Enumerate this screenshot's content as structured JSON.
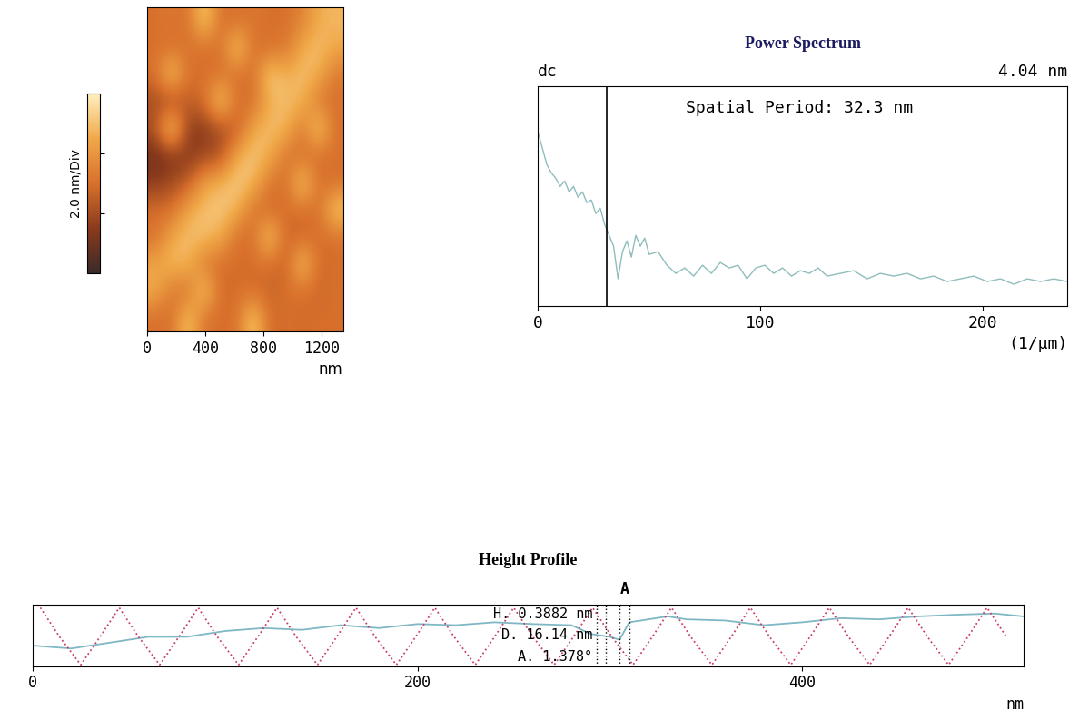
{
  "chart_data": [
    {
      "type": "heatmap",
      "cells": [
        [
          3,
          3.2,
          3,
          5.5,
          3,
          3,
          3.2,
          3,
          3,
          3.5,
          4.6,
          4.8
        ],
        [
          3,
          3,
          3.1,
          3,
          3,
          5.5,
          3,
          3,
          3.2,
          4.6,
          5,
          4.5
        ],
        [
          3,
          5.5,
          3,
          3,
          3.1,
          3,
          3,
          5.5,
          4.6,
          5,
          4.6,
          3.2
        ],
        [
          2,
          1.8,
          2.5,
          3,
          5.6,
          3,
          3,
          4.6,
          5,
          4.7,
          3.2,
          3
        ],
        [
          2.2,
          6,
          1.6,
          1.5,
          2,
          2.5,
          4.5,
          5,
          4.8,
          3.2,
          5.5,
          3
        ],
        [
          1,
          1.2,
          1.5,
          1.8,
          2.2,
          4.6,
          5.2,
          4.6,
          3.1,
          3,
          3,
          3
        ],
        [
          1.5,
          2,
          2.5,
          4.4,
          4.8,
          5.3,
          4.8,
          3.2,
          3,
          5.5,
          3,
          3
        ],
        [
          3,
          3,
          4.5,
          5,
          5.2,
          4.7,
          3.1,
          2.8,
          3,
          3,
          3,
          5.4
        ],
        [
          3,
          4.5,
          5,
          5,
          4.6,
          3,
          3,
          5.5,
          2.7,
          2.8,
          3,
          3
        ],
        [
          4.4,
          4.9,
          4.8,
          3.2,
          3,
          2.9,
          3,
          3,
          2.6,
          5.4,
          2.8,
          3
        ],
        [
          4.6,
          3.2,
          3,
          5.5,
          2.8,
          3,
          2.9,
          2.7,
          3,
          3,
          2.8,
          3
        ],
        [
          3,
          3,
          5.3,
          3,
          3,
          3,
          5.5,
          2.8,
          3,
          2.9,
          3,
          3
        ]
      ],
      "xlim": [
        0,
        1350
      ],
      "ylim": [
        0,
        1350
      ],
      "xticks": [
        0,
        400,
        800,
        1200
      ],
      "xlabel": "nm",
      "tick_labels": "x",
      "colorbar": {
        "label": "2.0 nm/Div",
        "range": [
          0,
          6
        ],
        "ticks": [
          2,
          4
        ],
        "tick_labels": false
      }
    },
    {
      "type": "line",
      "title": "Power Spectrum",
      "left_label": "dc",
      "right_label": "4.04 nm",
      "annotation": "Spatial Period: 32.3 nm",
      "xlabel": "(1/µm)",
      "x": [
        0,
        2,
        4,
        6,
        8,
        10,
        12,
        14,
        16,
        18,
        20,
        22,
        24,
        26,
        28,
        30,
        32,
        34,
        36,
        38,
        40,
        42,
        44,
        46,
        48,
        50,
        54,
        58,
        62,
        66,
        70,
        74,
        78,
        82,
        86,
        90,
        94,
        98,
        102,
        106,
        110,
        114,
        118,
        122,
        126,
        130,
        136,
        142,
        148,
        154,
        160,
        166,
        172,
        178,
        184,
        190,
        196,
        202,
        208,
        214,
        220,
        226,
        232,
        238
      ],
      "values": [
        3.2,
        2.9,
        2.6,
        2.45,
        2.35,
        2.2,
        2.3,
        2.1,
        2.2,
        2.0,
        2.1,
        1.9,
        1.95,
        1.7,
        1.8,
        1.5,
        1.3,
        1.1,
        0.5,
        1.0,
        1.2,
        0.9,
        1.3,
        1.1,
        1.25,
        0.95,
        1.0,
        0.75,
        0.6,
        0.7,
        0.55,
        0.75,
        0.6,
        0.8,
        0.7,
        0.75,
        0.5,
        0.7,
        0.75,
        0.6,
        0.7,
        0.55,
        0.65,
        0.6,
        0.7,
        0.55,
        0.6,
        0.65,
        0.5,
        0.6,
        0.55,
        0.6,
        0.5,
        0.55,
        0.45,
        0.5,
        0.55,
        0.45,
        0.5,
        0.4,
        0.5,
        0.45,
        0.5,
        0.45
      ],
      "color": "#8fbcbc",
      "cursor": 31,
      "xlim": [
        0,
        238
      ],
      "ylim": [
        0,
        4.04
      ],
      "xticks": [
        0,
        100,
        200
      ],
      "tick_labels": "x"
    },
    {
      "type": "line",
      "title": "Height Profile",
      "xlabel": "nm",
      "annotations": [
        "H. 0.3882 nm",
        "D. 16.14 nm",
        "A. 1.378°"
      ],
      "cursor_label": "A",
      "cursors": [
        293,
        298,
        305,
        310
      ],
      "series": [
        {
          "color": "#7fb8c4",
          "line_style": "solid",
          "x": [
            0,
            20,
            40,
            60,
            80,
            100,
            120,
            140,
            160,
            180,
            200,
            220,
            240,
            260,
            280,
            290,
            300,
            305,
            310,
            320,
            330,
            340,
            360,
            380,
            400,
            420,
            440,
            460,
            480,
            500,
            515
          ],
          "values": [
            0.35,
            0.3,
            0.4,
            0.5,
            0.5,
            0.6,
            0.65,
            0.62,
            0.7,
            0.65,
            0.72,
            0.7,
            0.75,
            0.72,
            0.7,
            0.55,
            0.5,
            0.45,
            0.75,
            0.8,
            0.85,
            0.8,
            0.78,
            0.7,
            0.75,
            0.82,
            0.8,
            0.85,
            0.88,
            0.9,
            0.85
          ]
        },
        {
          "color": "#c8406a",
          "line_style": "dotted",
          "x": [
            4,
            14,
            25,
            35,
            45,
            55,
            66,
            76,
            86,
            96,
            107,
            117,
            127,
            137,
            148,
            158,
            168,
            178,
            189,
            199,
            209,
            219,
            230,
            240,
            250,
            260,
            271,
            281,
            291,
            301,
            312,
            322,
            332,
            342,
            353,
            363,
            373,
            383,
            394,
            404,
            414,
            424,
            435,
            445,
            455,
            465,
            476,
            486,
            496,
            506
          ],
          "values": [
            1.0,
            0.5,
            0.02,
            0.5,
            1.0,
            0.5,
            0.02,
            0.5,
            1.0,
            0.5,
            0.02,
            0.5,
            1.0,
            0.5,
            0.02,
            0.5,
            1.0,
            0.5,
            0.02,
            0.5,
            1.0,
            0.5,
            0.02,
            0.5,
            1.0,
            0.5,
            0.02,
            0.5,
            1.0,
            0.5,
            0.02,
            0.5,
            1.0,
            0.5,
            0.02,
            0.5,
            1.0,
            0.5,
            0.02,
            0.5,
            1.0,
            0.5,
            0.02,
            0.5,
            1.0,
            0.5,
            0.02,
            0.5,
            1.0,
            0.5
          ]
        }
      ],
      "xlim": [
        0,
        515
      ],
      "ylim": [
        0,
        1.05
      ],
      "xticks": [
        0,
        200,
        400
      ],
      "tick_labels": "x"
    }
  ]
}
